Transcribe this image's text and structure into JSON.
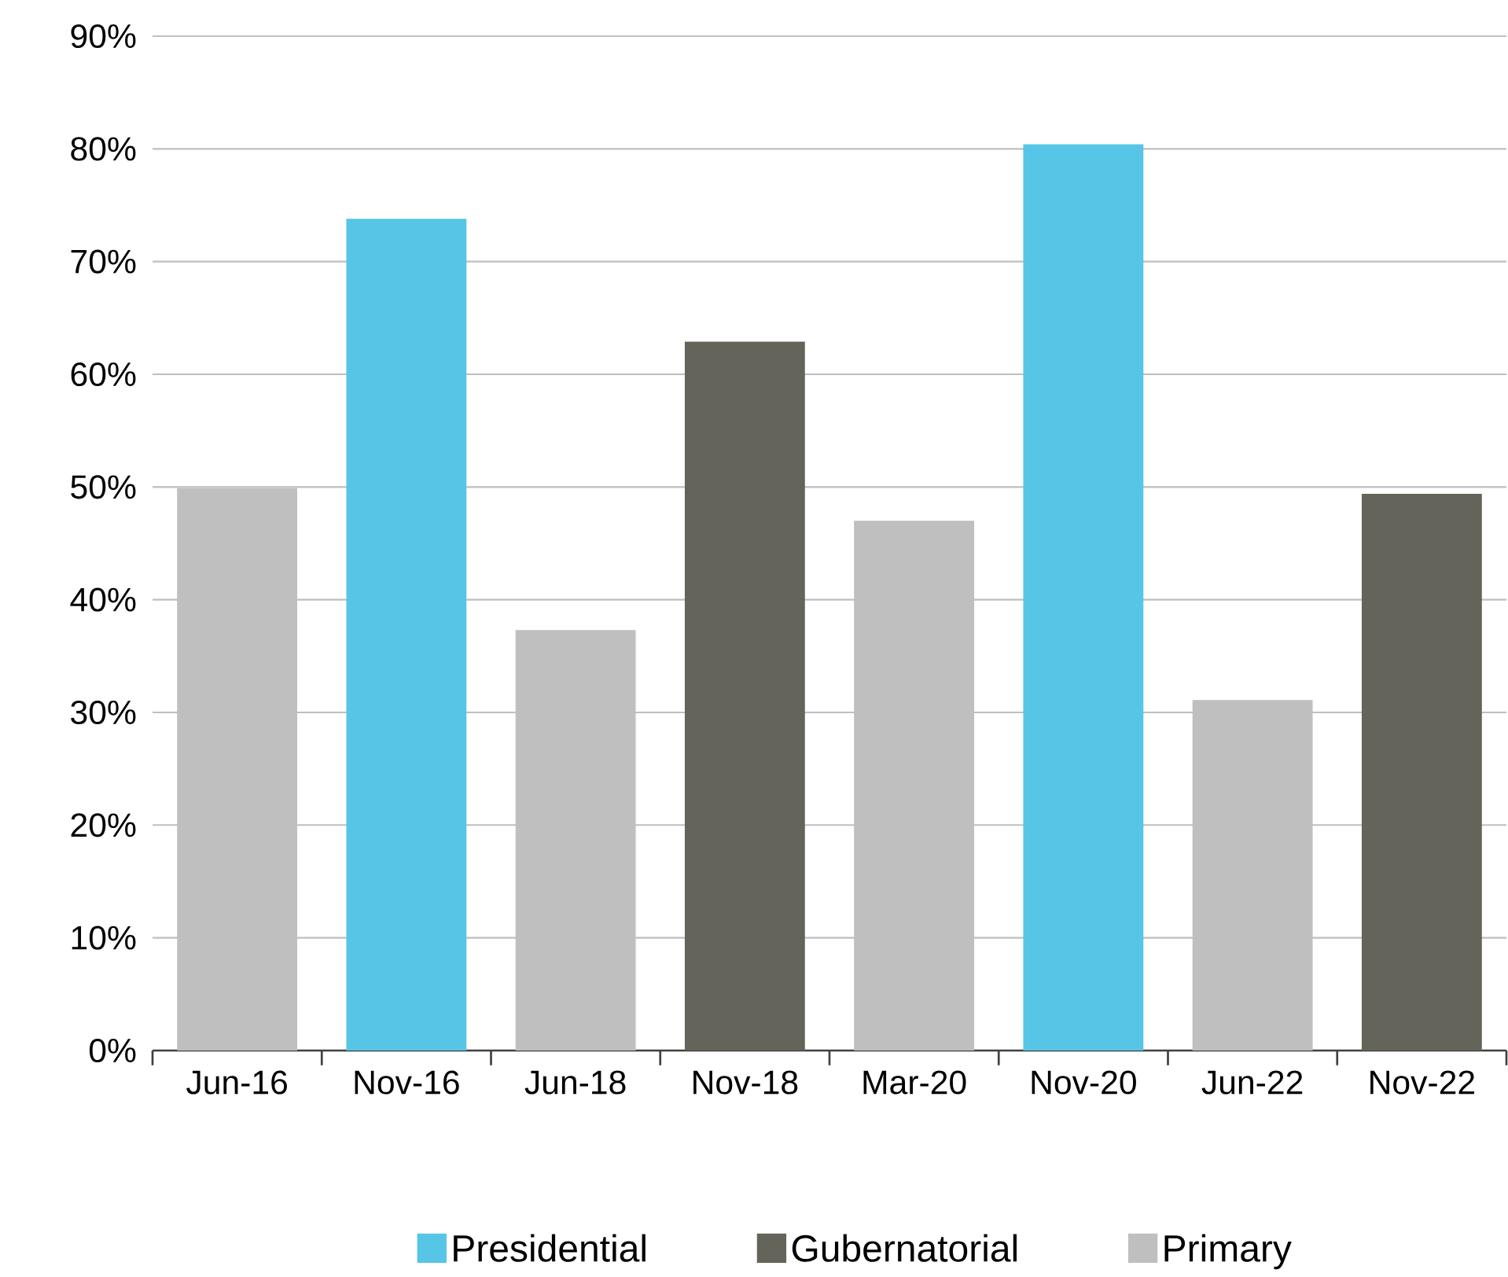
{
  "chart_data": {
    "type": "bar",
    "categories": [
      "Jun-16",
      "Nov-16",
      "Jun-18",
      "Nov-18",
      "Mar-20",
      "Nov-20",
      "Jun-22",
      "Nov-22"
    ],
    "series": [
      {
        "name": "Presidential",
        "color": "#56c5e6",
        "values": [
          null,
          73.8,
          null,
          null,
          null,
          80.4,
          null,
          null
        ]
      },
      {
        "name": "Gubernatorial",
        "color": "#64645a",
        "values": [
          null,
          null,
          null,
          62.9,
          null,
          null,
          null,
          49.4
        ]
      },
      {
        "name": "Primary",
        "color": "#bfbfbf",
        "values": [
          49.9,
          null,
          37.3,
          null,
          47.0,
          null,
          31.1,
          null
        ]
      }
    ],
    "ylim": [
      0,
      90
    ],
    "yticks": [
      {
        "value": 0,
        "label": "0%"
      },
      {
        "value": 10,
        "label": "10%"
      },
      {
        "value": 20,
        "label": "20%"
      },
      {
        "value": 30,
        "label": "30%"
      },
      {
        "value": 40,
        "label": "40%"
      },
      {
        "value": 50,
        "label": "50%"
      },
      {
        "value": 60,
        "label": "60%"
      },
      {
        "value": 70,
        "label": "70%"
      },
      {
        "value": 80,
        "label": "80%"
      },
      {
        "value": 90,
        "label": "90%"
      }
    ],
    "grid": "y",
    "legend": "bottom"
  }
}
